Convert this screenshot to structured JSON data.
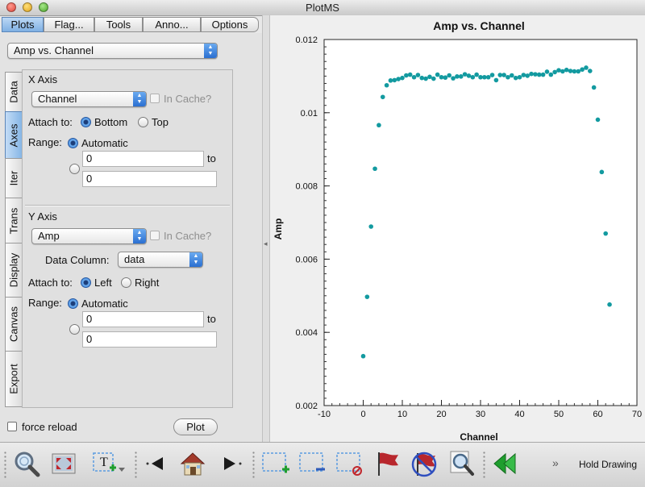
{
  "window": {
    "title": "PlotMS"
  },
  "tabs": [
    "Plots",
    "Flag...",
    "Tools",
    "Anno...",
    "Options"
  ],
  "plot_select": {
    "value": "Amp vs. Channel"
  },
  "side_tabs": [
    "Data",
    "Axes",
    "Iter",
    "Trans",
    "Display",
    "Canvas",
    "Export"
  ],
  "x_axis": {
    "section": "X Axis",
    "column": "Channel",
    "in_cache": "In Cache?",
    "attach_label": "Attach to:",
    "attach_options": [
      "Bottom",
      "Top"
    ],
    "range_label": "Range:",
    "automatic": "Automatic",
    "min": "0",
    "max": "0",
    "to": "to"
  },
  "y_axis": {
    "section": "Y Axis",
    "column": "Amp",
    "in_cache": "In Cache?",
    "data_column_label": "Data Column:",
    "data_column": "data",
    "attach_label": "Attach to:",
    "attach_options": [
      "Left",
      "Right"
    ],
    "range_label": "Range:",
    "automatic": "Automatic",
    "min": "0",
    "max": "0",
    "to": "to"
  },
  "bottom": {
    "force_reload": "force reload",
    "plot_button": "Plot"
  },
  "toolbar": {
    "hold_drawing": "Hold Drawing",
    "more": "»"
  },
  "colors": {
    "marker": "#139aa0",
    "selection_blue": "#5b9be0",
    "flag_red": "#b8272d",
    "arrow_green": "#1f9e2e"
  },
  "chart_data": {
    "type": "scatter",
    "title": "Amp vs. Channel",
    "xlabel": "Channel",
    "ylabel": "Amp",
    "xlim": [
      -10,
      70
    ],
    "ylim": [
      0.002,
      0.012
    ],
    "xticks": [
      -10,
      0,
      10,
      20,
      30,
      40,
      50,
      60,
      70
    ],
    "yticks": [
      0.002,
      0.004,
      0.006,
      0.008,
      0.01,
      0.012
    ],
    "ytick_labels": [
      "0.002",
      "0.004",
      "0.006",
      "0.008",
      "0.01",
      "0.012"
    ],
    "grid": false,
    "x": [
      0,
      1,
      2,
      3,
      4,
      5,
      6,
      7,
      8,
      9,
      10,
      11,
      12,
      13,
      14,
      15,
      16,
      17,
      18,
      19,
      20,
      21,
      22,
      23,
      24,
      25,
      26,
      27,
      28,
      29,
      30,
      31,
      32,
      33,
      34,
      35,
      36,
      37,
      38,
      39,
      40,
      41,
      42,
      43,
      44,
      45,
      46,
      47,
      48,
      49,
      50,
      51,
      52,
      53,
      54,
      55,
      56,
      57,
      58,
      59,
      60,
      61,
      62,
      63
    ],
    "y": [
      0.00335,
      0.00497,
      0.00689,
      0.00847,
      0.00966,
      0.01043,
      0.01075,
      0.01088,
      0.01089,
      0.01092,
      0.01095,
      0.01102,
      0.01104,
      0.01097,
      0.01103,
      0.01095,
      0.01093,
      0.01098,
      0.01093,
      0.01104,
      0.01097,
      0.01096,
      0.01102,
      0.01094,
      0.01099,
      0.01099,
      0.01105,
      0.01101,
      0.01097,
      0.01104,
      0.01097,
      0.01097,
      0.01097,
      0.01103,
      0.01089,
      0.01103,
      0.01103,
      0.01097,
      0.01102,
      0.01095,
      0.01097,
      0.01103,
      0.01101,
      0.01106,
      0.01105,
      0.01104,
      0.01104,
      0.01112,
      0.01104,
      0.01111,
      0.01116,
      0.01113,
      0.01117,
      0.01114,
      0.01113,
      0.01113,
      0.01118,
      0.01123,
      0.01114,
      0.01069,
      0.00981,
      0.00838,
      0.0067,
      0.00476
    ]
  }
}
